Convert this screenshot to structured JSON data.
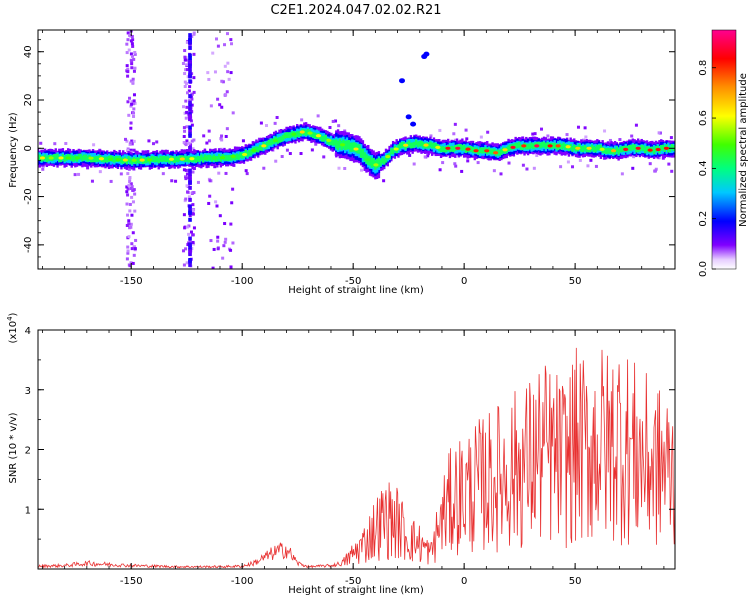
{
  "title": "C2E1.2024.047.02.02.R21",
  "chart_data": [
    {
      "type": "heatmap",
      "xlabel": "Height of straight line (km)",
      "ylabel": "Frequency (Hz)",
      "xlim": [
        -192,
        95
      ],
      "ylim": [
        -50,
        49
      ],
      "xticks": [
        -150,
        -100,
        -50,
        0,
        50
      ],
      "yticks": [
        -40,
        -20,
        0,
        20,
        40
      ],
      "grid": false,
      "ridge": {
        "x": [
          -192,
          -170,
          -150,
          -130,
          -110,
          -100,
          -95,
          -88,
          -80,
          -72,
          -65,
          -58,
          -52,
          -47,
          -43,
          -40,
          -36,
          -32,
          -28,
          -22,
          -15,
          -10,
          -5,
          0,
          5,
          10,
          15,
          20,
          25,
          30,
          35,
          40,
          45,
          50,
          55,
          60,
          65,
          70,
          75,
          80,
          85,
          90,
          95
        ],
        "y": [
          -4,
          -4,
          -5,
          -4.5,
          -4,
          -3,
          -1,
          2,
          5,
          7,
          5,
          2,
          1,
          -1,
          -5,
          -7,
          -5,
          -1,
          1,
          2,
          1,
          0,
          0,
          0,
          -1,
          -1,
          -2,
          0,
          1,
          1,
          1,
          1,
          1,
          0,
          0,
          0,
          -1,
          -1,
          0,
          0,
          -1,
          0,
          0
        ]
      },
      "colorbar": {
        "label": "Normalized spectral amplitude",
        "range": [
          0,
          0.95
        ],
        "ticks": [
          "0.0",
          "0.2",
          "0.4",
          "0.6",
          "0.8"
        ]
      }
    },
    {
      "type": "line",
      "xlabel": "Height of straight line (km)",
      "ylabel": "SNR (10 * v/v)",
      "yscale_label": "(x10",
      "yscale_exp": "4",
      "yscale_close": ")",
      "xlim": [
        -192,
        95
      ],
      "ylim": [
        0,
        4
      ],
      "xticks": [
        -150,
        -100,
        -50,
        0,
        50
      ],
      "yticks": [
        1,
        2,
        3,
        4
      ],
      "grid": false,
      "color": "#e83030",
      "series": [
        {
          "x": [
            -192,
            -180,
            -170,
            -160,
            -150,
            -140,
            -130,
            -120,
            -110,
            -100,
            -95,
            -90,
            -85,
            -80,
            -75,
            -70,
            -65,
            -60,
            -55,
            -50,
            -45,
            -40,
            -35,
            -30,
            -25,
            -20,
            -15,
            -10,
            -5,
            0,
            5,
            10,
            15,
            20,
            25,
            30,
            35,
            40,
            45,
            50,
            55,
            60,
            65,
            70,
            75,
            80,
            85,
            90,
            95
          ],
          "values": [
            0.05,
            0.06,
            0.1,
            0.08,
            0.06,
            0.05,
            0.04,
            0.04,
            0.04,
            0.05,
            0.1,
            0.2,
            0.3,
            0.35,
            0.1,
            0.04,
            0.05,
            0.06,
            0.1,
            0.3,
            0.5,
            0.8,
            1.0,
            0.9,
            0.6,
            0.5,
            0.3,
            1.0,
            1.4,
            1.5,
            1.6,
            1.7,
            1.8,
            1.9,
            2.0,
            2.1,
            2.3,
            2.2,
            2.1,
            2.4,
            2.3,
            2.5,
            2.4,
            2.6,
            2.3,
            2.2,
            2.0,
            2.0,
            1.9
          ]
        }
      ]
    }
  ]
}
